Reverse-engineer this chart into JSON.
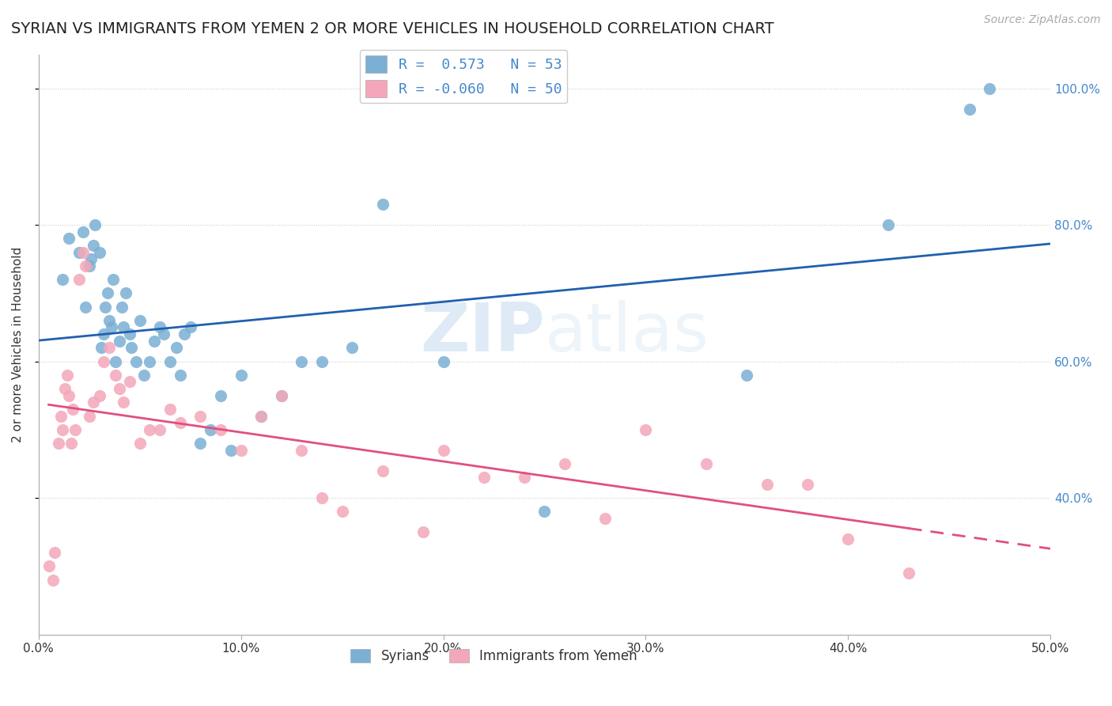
{
  "title": "SYRIAN VS IMMIGRANTS FROM YEMEN 2 OR MORE VEHICLES IN HOUSEHOLD CORRELATION CHART",
  "source_text": "Source: ZipAtlas.com",
  "ylabel": "2 or more Vehicles in Household",
  "xlim": [
    0.0,
    50.0
  ],
  "ylim": [
    20.0,
    105.0
  ],
  "xticks": [
    0.0,
    10.0,
    20.0,
    30.0,
    40.0,
    50.0
  ],
  "yticks": [
    40.0,
    60.0,
    80.0,
    100.0
  ],
  "blue_R": 0.573,
  "blue_N": 53,
  "pink_R": -0.06,
  "pink_N": 50,
  "legend_label_blue": "Syrians",
  "legend_label_pink": "Immigrants from Yemen",
  "blue_color": "#7bafd4",
  "pink_color": "#f4a7b9",
  "blue_line_color": "#2060b0",
  "pink_line_color": "#e05080",
  "watermark_zip": "ZIP",
  "watermark_atlas": "atlas",
  "blue_scatter_x": [
    1.2,
    1.5,
    2.0,
    2.2,
    2.3,
    2.5,
    2.6,
    2.7,
    2.8,
    3.0,
    3.1,
    3.2,
    3.3,
    3.4,
    3.5,
    3.6,
    3.7,
    3.8,
    4.0,
    4.1,
    4.2,
    4.3,
    4.5,
    4.6,
    4.8,
    5.0,
    5.2,
    5.5,
    5.7,
    6.0,
    6.2,
    6.5,
    6.8,
    7.0,
    7.2,
    7.5,
    8.0,
    8.5,
    9.0,
    9.5,
    10.0,
    11.0,
    12.0,
    13.0,
    14.0,
    15.5,
    17.0,
    20.0,
    25.0,
    35.0,
    42.0,
    46.0,
    47.0
  ],
  "blue_scatter_y": [
    72,
    78,
    76,
    79,
    68,
    74,
    75,
    77,
    80,
    76,
    62,
    64,
    68,
    70,
    66,
    65,
    72,
    60,
    63,
    68,
    65,
    70,
    64,
    62,
    60,
    66,
    58,
    60,
    63,
    65,
    64,
    60,
    62,
    58,
    64,
    65,
    48,
    50,
    55,
    47,
    58,
    52,
    55,
    60,
    60,
    62,
    83,
    60,
    38,
    58,
    80,
    97,
    100
  ],
  "pink_scatter_x": [
    0.5,
    0.7,
    0.8,
    1.0,
    1.1,
    1.2,
    1.3,
    1.4,
    1.5,
    1.6,
    1.7,
    1.8,
    2.0,
    2.2,
    2.3,
    2.5,
    2.7,
    3.0,
    3.2,
    3.5,
    3.8,
    4.0,
    4.2,
    4.5,
    5.0,
    5.5,
    6.0,
    6.5,
    7.0,
    8.0,
    9.0,
    10.0,
    11.0,
    12.0,
    13.0,
    14.0,
    15.0,
    17.0,
    19.0,
    20.0,
    22.0,
    24.0,
    26.0,
    28.0,
    30.0,
    33.0,
    36.0,
    38.0,
    40.0,
    43.0
  ],
  "pink_scatter_y": [
    30,
    28,
    32,
    48,
    52,
    50,
    56,
    58,
    55,
    48,
    53,
    50,
    72,
    76,
    74,
    52,
    54,
    55,
    60,
    62,
    58,
    56,
    54,
    57,
    48,
    50,
    50,
    53,
    51,
    52,
    50,
    47,
    52,
    55,
    47,
    40,
    38,
    44,
    35,
    47,
    43,
    43,
    45,
    37,
    50,
    45,
    42,
    42,
    34,
    29
  ]
}
